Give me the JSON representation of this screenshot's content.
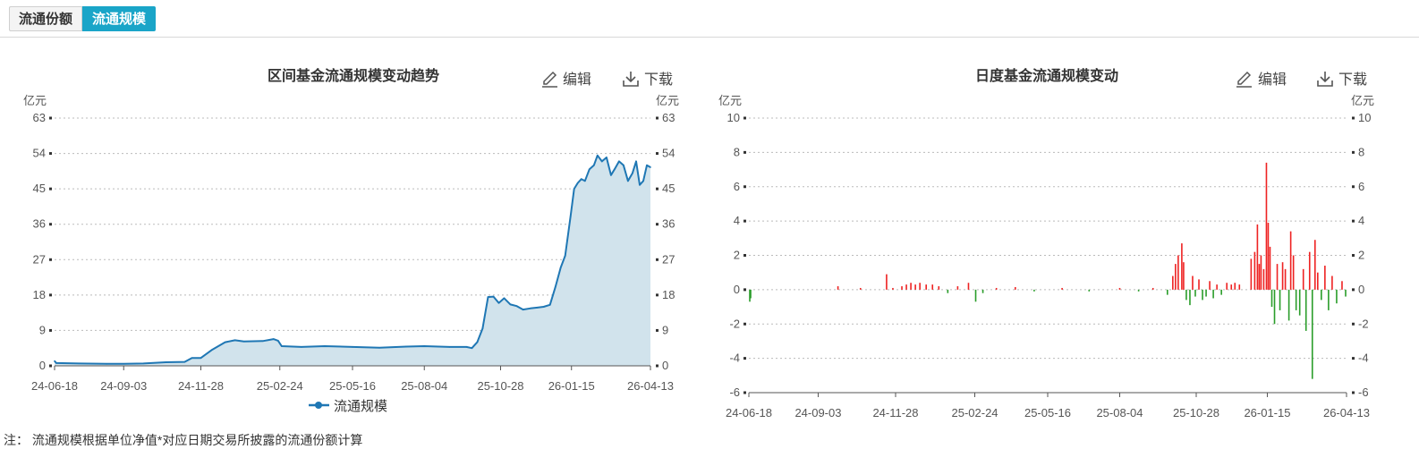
{
  "tabs": [
    {
      "label": "流通份额",
      "active": false
    },
    {
      "label": "流通规模",
      "active": true
    }
  ],
  "toolbar": {
    "edit_label": "编辑",
    "download_label": "下载"
  },
  "note": "注： 流通规模根据单位净值*对应日期交易所披露的流通份额计算",
  "colors": {
    "accent": "#1aa5c8",
    "line": "#1f77b4",
    "area": "#d1e3ec",
    "positive": "#ee2222",
    "negative": "#2a9d2a"
  },
  "chart_data": [
    {
      "type": "area",
      "title": "区间基金流通规模变动趋势",
      "ylabel_left": "亿元",
      "ylabel_right": "亿元",
      "ylim": [
        0,
        63
      ],
      "yticks": [
        0,
        9,
        18,
        27,
        36,
        45,
        54,
        63
      ],
      "xticks": [
        "24-06-18",
        "24-09-03",
        "24-11-28",
        "25-02-24",
        "25-05-16",
        "25-08-04",
        "25-10-28",
        "26-01-15",
        "26-04-13"
      ],
      "grid": true,
      "legend": "bottom",
      "series": [
        {
          "name": "流通规模",
          "points": [
            [
              "24-06-18",
              1.2
            ],
            [
              "24-06-20",
              0.7
            ],
            [
              "24-07-15",
              0.6
            ],
            [
              "24-08-15",
              0.5
            ],
            [
              "24-09-03",
              0.5
            ],
            [
              "24-09-25",
              0.6
            ],
            [
              "24-10-20",
              0.9
            ],
            [
              "24-11-10",
              1.0
            ],
            [
              "24-11-18",
              2.0
            ],
            [
              "24-11-28",
              2.0
            ],
            [
              "24-12-10",
              4.0
            ],
            [
              "24-12-25",
              6.0
            ],
            [
              "25-01-05",
              6.5
            ],
            [
              "25-01-15",
              6.2
            ],
            [
              "25-02-05",
              6.3
            ],
            [
              "25-02-17",
              6.8
            ],
            [
              "25-02-22",
              6.4
            ],
            [
              "25-02-26",
              5.0
            ],
            [
              "25-03-20",
              4.8
            ],
            [
              "25-04-15",
              5.0
            ],
            [
              "25-05-16",
              4.8
            ],
            [
              "25-06-15",
              4.6
            ],
            [
              "25-07-15",
              4.9
            ],
            [
              "25-08-04",
              5.0
            ],
            [
              "25-09-01",
              4.8
            ],
            [
              "25-09-20",
              4.8
            ],
            [
              "25-09-26",
              4.5
            ],
            [
              "25-10-02",
              6.0
            ],
            [
              "25-10-08",
              9.5
            ],
            [
              "25-10-14",
              17.5
            ],
            [
              "25-10-20",
              17.6
            ],
            [
              "25-10-26",
              16.0
            ],
            [
              "25-11-01",
              17.2
            ],
            [
              "25-11-08",
              15.6
            ],
            [
              "25-11-15",
              15.2
            ],
            [
              "25-11-22",
              14.3
            ],
            [
              "25-11-30",
              14.6
            ],
            [
              "25-12-08",
              14.8
            ],
            [
              "25-12-15",
              15.0
            ],
            [
              "25-12-22",
              15.5
            ],
            [
              "25-12-28",
              20.0
            ],
            [
              "26-01-03",
              25.0
            ],
            [
              "26-01-08",
              28.0
            ],
            [
              "26-01-14",
              38.0
            ],
            [
              "26-01-18",
              45.0
            ],
            [
              "26-01-22",
              46.5
            ],
            [
              "26-01-26",
              47.5
            ],
            [
              "26-01-30",
              47.0
            ],
            [
              "26-02-04",
              50.0
            ],
            [
              "26-02-09",
              51.0
            ],
            [
              "26-02-13",
              53.5
            ],
            [
              "26-02-18",
              52.0
            ],
            [
              "26-02-23",
              53.0
            ],
            [
              "26-02-28",
              48.5
            ],
            [
              "26-03-04",
              50.0
            ],
            [
              "26-03-09",
              52.0
            ],
            [
              "26-03-14",
              51.0
            ],
            [
              "26-03-19",
              47.0
            ],
            [
              "26-03-24",
              49.0
            ],
            [
              "26-03-28",
              52.0
            ],
            [
              "26-04-01",
              46.0
            ],
            [
              "26-04-05",
              47.0
            ],
            [
              "26-04-09",
              51.0
            ],
            [
              "26-04-13",
              50.5
            ]
          ]
        }
      ]
    },
    {
      "type": "bar",
      "title": "日度基金流通规模变动",
      "ylabel_left": "亿元",
      "ylabel_right": "亿元",
      "ylim": [
        -6,
        10
      ],
      "yticks": [
        -6,
        -4,
        -2,
        0,
        2,
        4,
        6,
        8,
        10
      ],
      "xticks": [
        "24-06-18",
        "24-09-03",
        "24-11-28",
        "25-02-24",
        "25-05-16",
        "25-08-04",
        "25-10-28",
        "26-01-15",
        "26-04-13"
      ],
      "grid": true,
      "series": [
        {
          "name": "",
          "points": [
            [
              "24-06-19",
              -0.7
            ],
            [
              "24-06-20",
              -0.5
            ],
            [
              "24-09-25",
              0.2
            ],
            [
              "24-10-20",
              0.1
            ],
            [
              "24-11-18",
              0.9
            ],
            [
              "24-11-25",
              0.1
            ],
            [
              "24-12-05",
              0.2
            ],
            [
              "24-12-10",
              0.3
            ],
            [
              "24-12-15",
              0.4
            ],
            [
              "24-12-20",
              0.3
            ],
            [
              "24-12-25",
              0.4
            ],
            [
              "25-01-01",
              0.3
            ],
            [
              "25-01-08",
              0.3
            ],
            [
              "25-01-15",
              0.2
            ],
            [
              "25-01-25",
              -0.2
            ],
            [
              "25-02-05",
              0.2
            ],
            [
              "25-02-17",
              0.4
            ],
            [
              "25-02-25",
              -0.7
            ],
            [
              "25-03-05",
              -0.2
            ],
            [
              "25-03-20",
              0.1
            ],
            [
              "25-04-10",
              0.15
            ],
            [
              "25-05-01",
              -0.1
            ],
            [
              "25-06-01",
              0.1
            ],
            [
              "25-07-01",
              -0.1
            ],
            [
              "25-08-04",
              0.1
            ],
            [
              "25-08-25",
              -0.1
            ],
            [
              "25-09-10",
              0.1
            ],
            [
              "25-09-26",
              -0.3
            ],
            [
              "25-10-02",
              0.8
            ],
            [
              "25-10-05",
              1.5
            ],
            [
              "25-10-08",
              2.0
            ],
            [
              "25-10-12",
              2.7
            ],
            [
              "25-10-14",
              1.6
            ],
            [
              "25-10-17",
              -0.6
            ],
            [
              "25-10-21",
              -0.9
            ],
            [
              "25-10-24",
              0.8
            ],
            [
              "25-10-27",
              -0.4
            ],
            [
              "25-10-31",
              0.6
            ],
            [
              "25-11-04",
              -0.6
            ],
            [
              "25-11-08",
              -0.4
            ],
            [
              "25-11-12",
              0.5
            ],
            [
              "25-11-16",
              -0.5
            ],
            [
              "25-11-20",
              0.3
            ],
            [
              "25-11-25",
              -0.3
            ],
            [
              "25-12-01",
              0.4
            ],
            [
              "25-12-06",
              0.3
            ],
            [
              "25-12-10",
              0.4
            ],
            [
              "25-12-15",
              0.3
            ],
            [
              "25-12-28",
              1.8
            ],
            [
              "26-01-01",
              2.2
            ],
            [
              "26-01-04",
              3.8
            ],
            [
              "26-01-06",
              1.5
            ],
            [
              "26-01-08",
              2.0
            ],
            [
              "26-01-11",
              1.2
            ],
            [
              "26-01-14",
              7.4
            ],
            [
              "26-01-16",
              3.9
            ],
            [
              "26-01-18",
              2.5
            ],
            [
              "26-01-20",
              -1.0
            ],
            [
              "26-01-23",
              -2.0
            ],
            [
              "26-01-26",
              1.5
            ],
            [
              "26-01-29",
              -1.2
            ],
            [
              "26-02-01",
              1.6
            ],
            [
              "26-02-04",
              1.2
            ],
            [
              "26-02-08",
              -1.8
            ],
            [
              "26-02-10",
              3.4
            ],
            [
              "26-02-13",
              2.0
            ],
            [
              "26-02-16",
              -1.2
            ],
            [
              "26-02-20",
              -1.5
            ],
            [
              "26-02-24",
              1.2
            ],
            [
              "26-02-27",
              -2.4
            ],
            [
              "26-03-03",
              2.2
            ],
            [
              "26-03-06",
              -5.2
            ],
            [
              "26-03-09",
              2.9
            ],
            [
              "26-03-12",
              1.0
            ],
            [
              "26-03-16",
              -0.6
            ],
            [
              "26-03-20",
              1.4
            ],
            [
              "26-03-24",
              -1.2
            ],
            [
              "26-03-28",
              0.8
            ],
            [
              "26-04-02",
              -0.8
            ],
            [
              "26-04-08",
              0.5
            ],
            [
              "26-04-12",
              -0.4
            ]
          ]
        }
      ]
    }
  ]
}
